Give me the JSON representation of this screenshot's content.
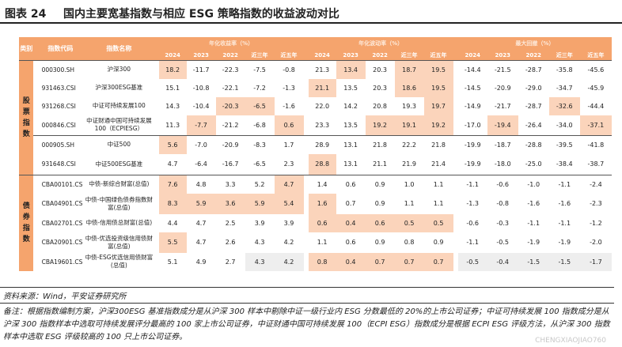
{
  "title": {
    "num": "图表 24",
    "text": "国内主要宽基指数与相应 ESG 策略指数的收益波动对比"
  },
  "table": {
    "col_type": "类别",
    "col_code": "指数代码",
    "col_name": "指数名称",
    "groups": [
      "年化收益率（%）",
      "年化波动率（%）",
      "最大回撤（%）"
    ],
    "periods": [
      "2024",
      "2023",
      "2022",
      "近三年",
      "近五年"
    ],
    "cat_equity": "股票指数",
    "cat_bond": "债券指数",
    "rows": [
      {
        "code": "000300.SH",
        "name": "沪深300",
        "ret": [
          "18.2",
          "-11.7",
          "-22.3",
          "-7.5",
          "-0.8"
        ],
        "vol": [
          "21.3",
          "13.4",
          "20.3",
          "18.7",
          "19.5"
        ],
        "dd": [
          "-14.4",
          "-21.5",
          "-28.7",
          "-35.8",
          "-45.6"
        ]
      },
      {
        "code": "931463.CSI",
        "name": "沪深300ESG基准",
        "ret": [
          "15.1",
          "-10.8",
          "-22.1",
          "-7.2",
          "-1.3"
        ],
        "vol": [
          "21.1",
          "13.5",
          "20.3",
          "18.6",
          "19.5"
        ],
        "dd": [
          "-14.5",
          "-20.9",
          "-29.0",
          "-34.7",
          "-45.9"
        ]
      },
      {
        "code": "931268.CSI",
        "name": "中证可持续发展100",
        "ret": [
          "14.3",
          "-10.4",
          "-20.3",
          "-6.5",
          "-1.6"
        ],
        "vol": [
          "22.0",
          "14.2",
          "20.8",
          "19.3",
          "19.7"
        ],
        "dd": [
          "-14.9",
          "-21.7",
          "-28.7",
          "-32.6",
          "-44.4"
        ]
      },
      {
        "code": "000846.CSI",
        "name": "中证财通中国可持续发展100（ECPIESG）",
        "ret": [
          "11.3",
          "-7.7",
          "-21.2",
          "-6.8",
          "0.6"
        ],
        "vol": [
          "23.3",
          "13.5",
          "19.2",
          "19.1",
          "19.2"
        ],
        "dd": [
          "-17.0",
          "-19.4",
          "-26.4",
          "-34.0",
          "-37.1"
        ]
      },
      {
        "code": "000905.SH",
        "name": "中证500",
        "ret": [
          "5.6",
          "-7.0",
          "-20.9",
          "-8.3",
          "1.7"
        ],
        "vol": [
          "28.9",
          "13.1",
          "21.8",
          "22.2",
          "21.8"
        ],
        "dd": [
          "-19.9",
          "-18.7",
          "-28.8",
          "-39.5",
          "-41.8"
        ]
      },
      {
        "code": "931648.CSI",
        "name": "中证500ESG基准",
        "ret": [
          "4.7",
          "-6.4",
          "-16.7",
          "-6.5",
          "2.3"
        ],
        "vol": [
          "28.8",
          "13.1",
          "21.1",
          "21.9",
          "21.4"
        ],
        "dd": [
          "-19.9",
          "-18.0",
          "-25.0",
          "-38.4",
          "-38.7"
        ]
      },
      {
        "code": "CBA00101.CS",
        "name": "中债-新综合财富(总值)",
        "ret": [
          "7.6",
          "4.8",
          "3.3",
          "5.2",
          "4.7"
        ],
        "vol": [
          "1.4",
          "0.6",
          "0.9",
          "1.0",
          "1.1"
        ],
        "dd": [
          "-1.1",
          "-0.6",
          "-1.0",
          "-1.1",
          "-2.4"
        ]
      },
      {
        "code": "CBA04901.CS",
        "name": "中债-中国绿色债券指数财富(总值)",
        "ret": [
          "8.3",
          "5.9",
          "3.6",
          "5.9",
          "5.4"
        ],
        "vol": [
          "1.6",
          "0.7",
          "0.9",
          "1.1",
          "1.1"
        ],
        "dd": [
          "-1.3",
          "-0.8",
          "-1.6",
          "-1.6",
          "-2.3"
        ]
      },
      {
        "code": "CBA02701.CS",
        "name": "中债-信用债总财富(总值)",
        "ret": [
          "4.4",
          "4.7",
          "2.5",
          "3.9",
          "3.9"
        ],
        "vol": [
          "0.6",
          "0.4",
          "0.6",
          "0.5",
          "0.5"
        ],
        "dd": [
          "-0.6",
          "-0.3",
          "-1.1",
          "-1.1",
          "-1.2"
        ]
      },
      {
        "code": "CBA20901.CS",
        "name": "中债-优选投资级信用债财富(总值)",
        "ret": [
          "5.5",
          "4.7",
          "2.6",
          "4.3",
          "4.2"
        ],
        "vol": [
          "1.1",
          "0.6",
          "0.9",
          "0.8",
          "0.9"
        ],
        "dd": [
          "-1.1",
          "-0.5",
          "-1.9",
          "-1.9",
          "-2.0"
        ]
      },
      {
        "code": "CBA19601.CS",
        "name": "中债-ESG优选信用债财富(总值)",
        "ret": [
          "5.1",
          "4.9",
          "2.7",
          "4.3",
          "4.2"
        ],
        "vol": [
          "0.8",
          "0.4",
          "0.7",
          "0.7",
          "0.7"
        ],
        "dd": [
          "-0.5",
          "-0.4",
          "-1.5",
          "-1.5",
          "-1.7"
        ]
      }
    ]
  },
  "source": "资料来源：Wind，平安证券研究所",
  "note": "备注：根据指数编制方案，沪深300ESG 基准指数成分是从沪深 300 样本中剔除中证一级行业内 ESG 分数最低的 20%的上市公司证券；中证可持续发展 100 指数成分是从沪深 300 指数样本中选取可持续发展评分最高的 100 家上市公司证券，中证财通中国可持续发展 100（ECPI ESG）指数成分是根据 ECPI ESG 评级方法，从沪深 300 指数样本中选取 ESG 评级较高的 100 只上市公司证券。",
  "watermark": "CHENGXIAOJIAO760"
}
